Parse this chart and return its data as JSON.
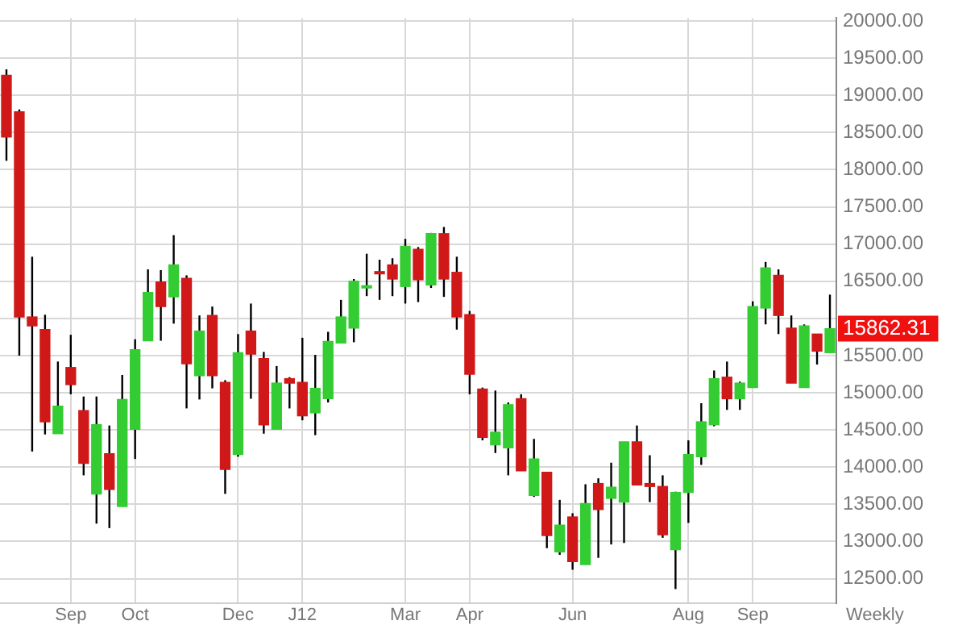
{
  "chart_data": {
    "type": "candlestick",
    "categories": [
      null,
      null,
      null,
      null,
      null,
      "Sep",
      null,
      null,
      null,
      null,
      "Oct",
      null,
      null,
      null,
      null,
      null,
      null,
      null,
      "Dec",
      null,
      null,
      null,
      null,
      "J12",
      null,
      null,
      null,
      null,
      null,
      null,
      null,
      "Mar",
      null,
      null,
      null,
      null,
      "Apr",
      null,
      null,
      null,
      null,
      null,
      null,
      null,
      "Jun",
      null,
      null,
      null,
      null,
      null,
      null,
      null,
      null,
      "Aug",
      null,
      null,
      null,
      null,
      "Sep",
      null,
      null,
      null,
      null,
      null,
      null
    ],
    "ohlc": [
      [
        19270,
        19350,
        18120,
        18440
      ],
      [
        18780,
        18810,
        15500,
        16020
      ],
      [
        16020,
        16830,
        14210,
        15900
      ],
      [
        15850,
        16050,
        14440,
        14610
      ],
      [
        14450,
        15420,
        14450,
        14820
      ],
      [
        15340,
        15780,
        14980,
        15110
      ],
      [
        14760,
        14950,
        13890,
        14050
      ],
      [
        13640,
        14950,
        13240,
        14570
      ],
      [
        14180,
        14560,
        13180,
        13700
      ],
      [
        13470,
        15240,
        13470,
        14910
      ],
      [
        14510,
        15720,
        14110,
        15580
      ],
      [
        15700,
        16660,
        15700,
        16350
      ],
      [
        16490,
        16650,
        15700,
        16160
      ],
      [
        16290,
        17120,
        15930,
        16720
      ],
      [
        16540,
        16580,
        14790,
        15390
      ],
      [
        15230,
        16040,
        14910,
        15830
      ],
      [
        16040,
        16160,
        15060,
        15230
      ],
      [
        15140,
        15170,
        13640,
        13970
      ],
      [
        14170,
        15790,
        14140,
        15540
      ],
      [
        15830,
        16200,
        14920,
        15520
      ],
      [
        15460,
        15550,
        14450,
        14570
      ],
      [
        14510,
        15360,
        14510,
        15130
      ],
      [
        15190,
        15210,
        14790,
        15130
      ],
      [
        15140,
        15740,
        14630,
        14690
      ],
      [
        14730,
        15510,
        14430,
        15060
      ],
      [
        14920,
        15820,
        14870,
        15690
      ],
      [
        15670,
        16250,
        15670,
        16020
      ],
      [
        15870,
        16530,
        15680,
        16500
      ],
      [
        16410,
        16870,
        16300,
        16440
      ],
      [
        16630,
        16790,
        16250,
        16600
      ],
      [
        16720,
        16810,
        16300,
        16530
      ],
      [
        16430,
        17070,
        16200,
        16970
      ],
      [
        16930,
        16960,
        16220,
        16520
      ],
      [
        16450,
        17150,
        16410,
        17140
      ],
      [
        17140,
        17230,
        16290,
        16530
      ],
      [
        16620,
        16830,
        15850,
        16020
      ],
      [
        16050,
        16100,
        14980,
        15250
      ],
      [
        15050,
        15070,
        14360,
        14400
      ],
      [
        14300,
        15030,
        14190,
        14470
      ],
      [
        14260,
        14870,
        13890,
        14840
      ],
      [
        14920,
        14980,
        13950,
        13950
      ],
      [
        13620,
        14380,
        13600,
        14110
      ],
      [
        13930,
        13930,
        12910,
        13080
      ],
      [
        12860,
        13560,
        12820,
        13220
      ],
      [
        13330,
        13380,
        12620,
        12730
      ],
      [
        12690,
        13770,
        12690,
        13510
      ],
      [
        13780,
        13850,
        12780,
        13430
      ],
      [
        13580,
        14060,
        12960,
        13730
      ],
      [
        13530,
        14340,
        12980,
        14340
      ],
      [
        14340,
        14560,
        13760,
        13760
      ],
      [
        13780,
        14160,
        13530,
        13740
      ],
      [
        13740,
        13890,
        13050,
        13090
      ],
      [
        12890,
        13670,
        12360,
        13660
      ],
      [
        13660,
        14360,
        13250,
        14170
      ],
      [
        14140,
        14860,
        14030,
        14610
      ],
      [
        14570,
        15300,
        14550,
        15190
      ],
      [
        15210,
        15420,
        14770,
        14920
      ],
      [
        14920,
        15150,
        14770,
        15130
      ],
      [
        15070,
        16230,
        15070,
        16160
      ],
      [
        16140,
        16760,
        15920,
        16680
      ],
      [
        16580,
        16660,
        15790,
        16040
      ],
      [
        15870,
        16040,
        15130,
        15130
      ],
      [
        15070,
        15920,
        15070,
        15900
      ],
      [
        15790,
        15790,
        15380,
        15560
      ],
      [
        15540,
        16320,
        15540,
        15862.31
      ]
    ],
    "colors": [
      "#d01818",
      "#d01818",
      "#d01818",
      "#d01818",
      "#33cc33",
      "#d01818",
      "#d01818",
      "#33cc33",
      "#d01818",
      "#33cc33",
      "#33cc33",
      "#33cc33",
      "#d01818",
      "#33cc33",
      "#d01818",
      "#33cc33",
      "#d01818",
      "#d01818",
      "#33cc33",
      "#d01818",
      "#d01818",
      "#33cc33",
      "#d01818",
      "#d01818",
      "#33cc33",
      "#33cc33",
      "#33cc33",
      "#33cc33",
      "#33cc33",
      "#d01818",
      "#d01818",
      "#33cc33",
      "#d01818",
      "#33cc33",
      "#d01818",
      "#d01818",
      "#d01818",
      "#d01818",
      "#33cc33",
      "#33cc33",
      "#d01818",
      "#33cc33",
      "#d01818",
      "#33cc33",
      "#d01818",
      "#33cc33",
      "#d01818",
      "#33cc33",
      "#33cc33",
      "#d01818",
      "#d01818",
      "#d01818",
      "#33cc33",
      "#33cc33",
      "#33cc33",
      "#33cc33",
      "#d01818",
      "#33cc33",
      "#33cc33",
      "#33cc33",
      "#d01818",
      "#d01818",
      "#33cc33",
      "#d01818",
      "#33cc33"
    ],
    "ylim": [
      12170,
      20040
    ],
    "yticks": [
      {
        "value": 12500,
        "label": "12500.00"
      },
      {
        "value": 13000,
        "label": "13000.00"
      },
      {
        "value": 13500,
        "label": "13500.00"
      },
      {
        "value": 14000,
        "label": "14000.00"
      },
      {
        "value": 14500,
        "label": "14500.00"
      },
      {
        "value": 15000,
        "label": "15000.00"
      },
      {
        "value": 15500,
        "label": "15500.00"
      },
      {
        "value": 16000,
        "label": null
      },
      {
        "value": 16500,
        "label": "16500.00"
      },
      {
        "value": 17000,
        "label": "17000.00"
      },
      {
        "value": 17500,
        "label": "17500.00"
      },
      {
        "value": 18000,
        "label": "18000.00"
      },
      {
        "value": 18500,
        "label": "18500.00"
      },
      {
        "value": 19000,
        "label": "19000.00"
      },
      {
        "value": 19500,
        "label": "19500.00"
      },
      {
        "value": 20000,
        "label": "20000.00"
      }
    ],
    "annotations": [
      "15862.31",
      "Weekly"
    ],
    "grid": true,
    "legend": false
  }
}
